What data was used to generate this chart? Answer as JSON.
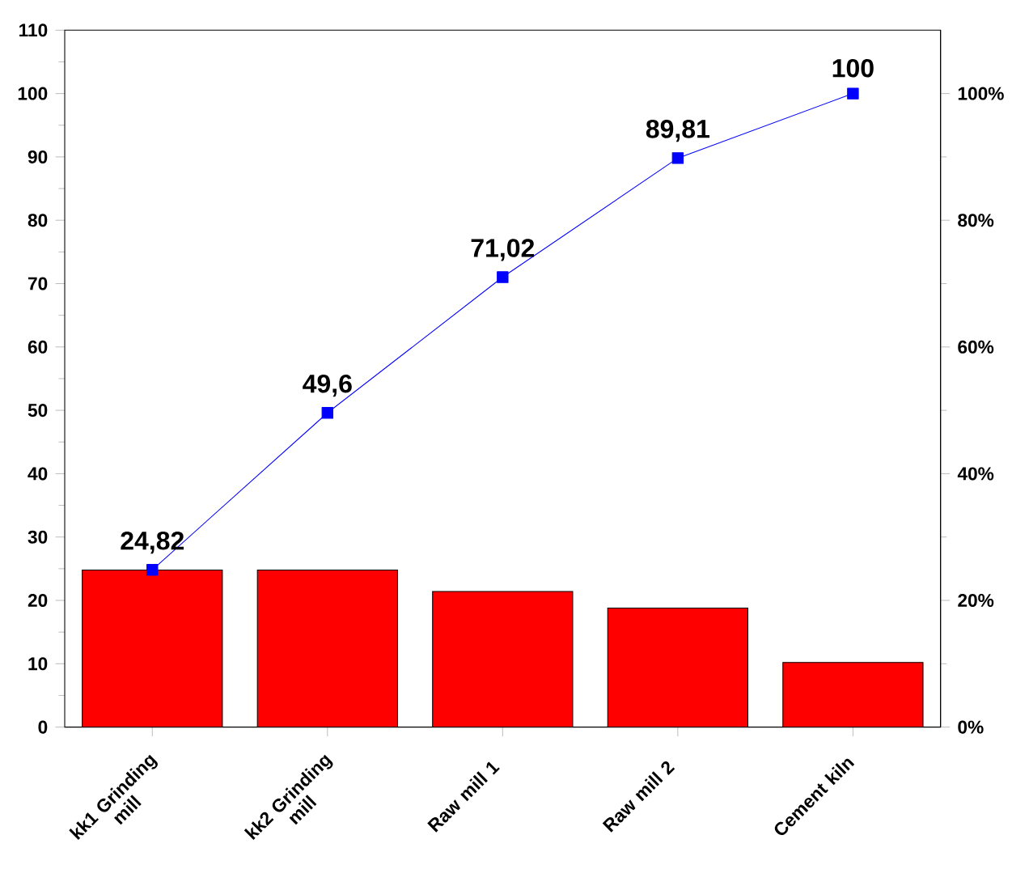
{
  "chart_data": {
    "type": "bar",
    "categories": [
      "kk1 Grinding mill",
      "kk2 Grinding mill",
      "Raw mill 1",
      "Raw mill 2",
      "Cement kiln"
    ],
    "series": [
      {
        "color": "#ff0000",
        "values": [
          24.8,
          24.8,
          21.4,
          18.8,
          10.2
        ]
      },
      {
        "type": "line",
        "color": "#0000ff",
        "values": [
          24.82,
          49.6,
          71.02,
          89.81,
          100
        ],
        "value_labels": [
          "24,82",
          "49,6",
          "71,02",
          "89,81",
          "100"
        ]
      }
    ],
    "marker": "square",
    "line_style": "solid",
    "ylim": [
      0,
      110
    ],
    "yticks": [
      0,
      10,
      20,
      30,
      40,
      50,
      60,
      70,
      80,
      90,
      100,
      110
    ],
    "y2lim": [
      0,
      110
    ],
    "y2ticks": [
      {
        "value": 0,
        "label": "0%"
      },
      {
        "value": 20,
        "label": "20%"
      },
      {
        "value": 40,
        "label": "40%"
      },
      {
        "value": 60,
        "label": "60%"
      },
      {
        "value": 80,
        "label": "80%"
      },
      {
        "value": 100,
        "label": "100%"
      }
    ],
    "tick_labels": "xy"
  }
}
